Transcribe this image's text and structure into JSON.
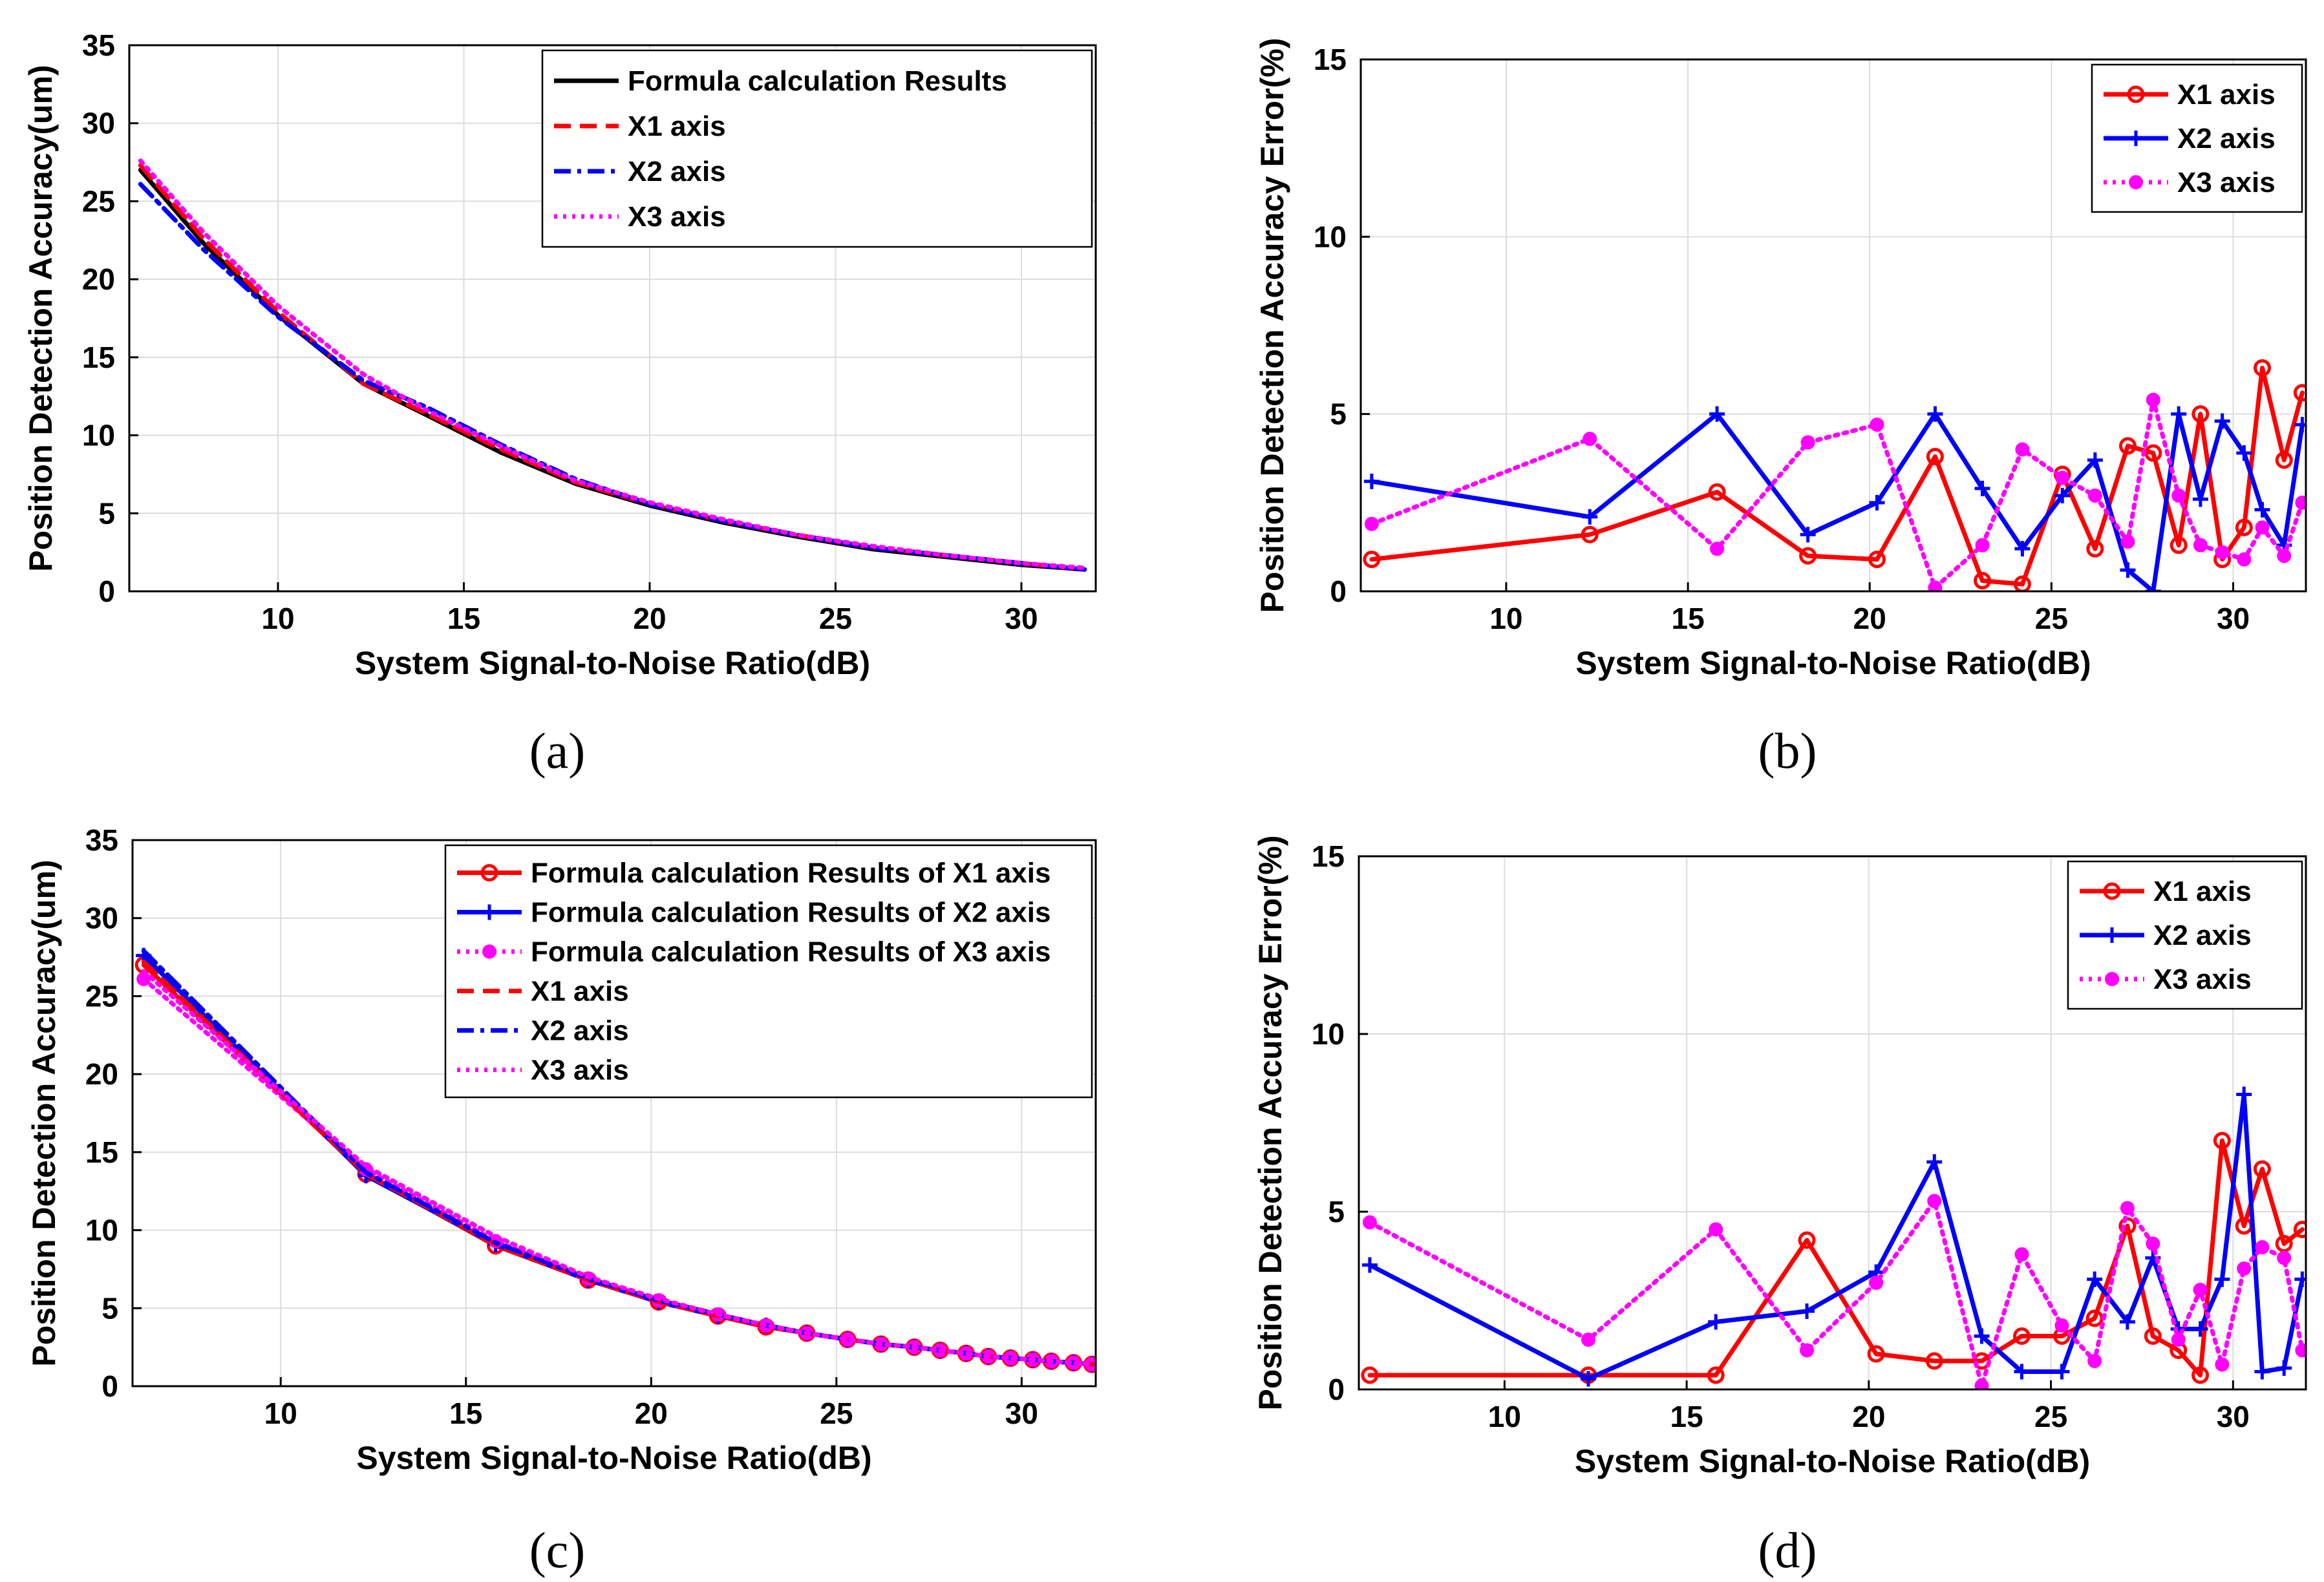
{
  "chart_data": [
    {
      "id": "a",
      "type": "line",
      "panel_label": "(a)",
      "xlabel": "System Signal-to-Noise Ratio(dB)",
      "ylabel": "Position Detection Accuracy(um)",
      "xlim": [
        6,
        32
      ],
      "ylim": [
        0,
        35
      ],
      "xticks": [
        10,
        15,
        20,
        25,
        30
      ],
      "yticks": [
        0,
        5,
        10,
        15,
        20,
        25,
        30,
        35
      ],
      "grid": true,
      "legend_position": "top-right",
      "series": [
        {
          "name": "Formula calculation Results",
          "color": "#000000",
          "dash": "solid",
          "marker": "none",
          "x": [
            6.3,
            8,
            10,
            12.3,
            14,
            16,
            18,
            20,
            22,
            24,
            26,
            28,
            30,
            31.7
          ],
          "y": [
            27,
            22.3,
            17.7,
            13.3,
            11.3,
            8.9,
            6.9,
            5.5,
            4.4,
            3.5,
            2.7,
            2.2,
            1.7,
            1.4
          ]
        },
        {
          "name": "X1 axis",
          "color": "#ff0000",
          "dash": "dashed",
          "marker": "none",
          "x": [
            6.3,
            8,
            10,
            12.3,
            14,
            16,
            18,
            20,
            22,
            24,
            26,
            28,
            30,
            31.7
          ],
          "y": [
            27.3,
            22.6,
            17.9,
            13.3,
            11.4,
            9.1,
            7.0,
            5.6,
            4.5,
            3.6,
            2.8,
            2.3,
            1.8,
            1.4
          ]
        },
        {
          "name": "X2 axis",
          "color": "#0000ff",
          "dash": "dashdot",
          "marker": "none",
          "x": [
            6.3,
            8,
            10,
            12.3,
            14,
            16,
            18,
            20,
            22,
            24,
            26,
            28,
            30,
            31.7
          ],
          "y": [
            26.1,
            21.9,
            17.6,
            13.5,
            11.8,
            9.4,
            7.2,
            5.6,
            4.5,
            3.6,
            2.8,
            2.3,
            1.8,
            1.4
          ]
        },
        {
          "name": "X3 axis",
          "color": "#ff00ff",
          "dash": "dotted",
          "marker": "none",
          "x": [
            6.3,
            8,
            10,
            12.3,
            14,
            16,
            18,
            20,
            22,
            24,
            26,
            28,
            30,
            31.7
          ],
          "y": [
            27.6,
            23,
            18.3,
            13.9,
            11.6,
            9.3,
            7.1,
            5.7,
            4.6,
            3.6,
            2.9,
            2.3,
            1.8,
            1.5
          ]
        }
      ]
    },
    {
      "id": "b",
      "type": "line",
      "panel_label": "(b)",
      "xlabel": "System Signal-to-Noise Ratio(dB)",
      "ylabel": "Position Detection Accuracy Error(%)",
      "xlim": [
        6,
        32
      ],
      "ylim": [
        0,
        15
      ],
      "xticks": [
        10,
        15,
        20,
        25,
        30
      ],
      "yticks": [
        0,
        5,
        10,
        15
      ],
      "grid": true,
      "legend_position": "top-right",
      "series": [
        {
          "name": "X1 axis",
          "color": "#ff0000",
          "dash": "solid",
          "marker": "circle",
          "x": [
            6.3,
            12.3,
            15.8,
            18.3,
            20.2,
            21.8,
            23.1,
            24.2,
            25.3,
            26.2,
            27.1,
            27.8,
            28.5,
            29.1,
            29.7,
            30.3,
            30.8,
            31.4,
            31.9
          ],
          "y": [
            0.9,
            1.6,
            2.8,
            1.0,
            0.9,
            3.8,
            0.3,
            0.2,
            3.3,
            1.2,
            4.1,
            3.9,
            1.3,
            5.0,
            0.9,
            1.8,
            6.3,
            3.7,
            5.6
          ]
        },
        {
          "name": "X2 axis",
          "color": "#0000ff",
          "dash": "solid",
          "marker": "plus",
          "x": [
            6.3,
            12.3,
            15.8,
            18.3,
            20.2,
            21.8,
            23.1,
            24.2,
            25.3,
            26.2,
            27.1,
            27.8,
            28.5,
            29.1,
            29.7,
            30.3,
            30.8,
            31.4,
            31.9
          ],
          "y": [
            3.1,
            2.1,
            5.0,
            1.6,
            2.5,
            5.0,
            2.9,
            1.2,
            2.7,
            3.7,
            0.6,
            0.0,
            5.0,
            2.6,
            4.8,
            3.9,
            2.3,
            1.3,
            4.7
          ]
        },
        {
          "name": "X3 axis",
          "color": "#ff00ff",
          "dash": "dotted",
          "marker": "dot",
          "x": [
            6.3,
            12.3,
            15.8,
            18.3,
            20.2,
            21.8,
            23.1,
            24.2,
            25.3,
            26.2,
            27.1,
            27.8,
            28.5,
            29.1,
            29.7,
            30.3,
            30.8,
            31.4,
            31.9
          ],
          "y": [
            1.9,
            4.3,
            1.2,
            4.2,
            4.7,
            0.1,
            1.3,
            4.0,
            3.2,
            2.7,
            1.4,
            5.4,
            2.7,
            1.3,
            1.1,
            0.9,
            1.8,
            1.0,
            2.5
          ]
        }
      ]
    },
    {
      "id": "c",
      "type": "line",
      "panel_label": "(c)",
      "xlabel": "System Signal-to-Noise Ratio(dB)",
      "ylabel": "Position Detection Accuracy(um)",
      "xlim": [
        6,
        32
      ],
      "ylim": [
        0,
        35
      ],
      "xticks": [
        10,
        15,
        20,
        25,
        30
      ],
      "yticks": [
        0,
        5,
        10,
        15,
        20,
        25,
        30,
        35
      ],
      "grid": true,
      "legend_position": "top-right",
      "series": [
        {
          "name": "Formula calculation Results of X1 axis",
          "color": "#ff0000",
          "dash": "solid",
          "marker": "circle",
          "x": [
            6.3,
            12.3,
            15.8,
            18.3,
            20.2,
            21.8,
            23.1,
            24.2,
            25.3,
            26.2,
            27.1,
            27.8,
            28.5,
            29.1,
            29.7,
            30.3,
            30.8,
            31.4,
            31.9
          ],
          "y": [
            27.0,
            13.6,
            9.0,
            6.8,
            5.4,
            4.5,
            3.8,
            3.4,
            3.0,
            2.7,
            2.5,
            2.3,
            2.1,
            1.9,
            1.8,
            1.7,
            1.6,
            1.5,
            1.4
          ]
        },
        {
          "name": "Formula calculation Results of X2 axis",
          "color": "#0000ff",
          "dash": "solid",
          "marker": "plus",
          "x": [
            6.3,
            12.3,
            15.8,
            18.3,
            20.2,
            21.8,
            23.1,
            24.2,
            25.3,
            26.2,
            27.1,
            27.8,
            28.5,
            29.1,
            29.7,
            30.3,
            30.8,
            31.4,
            31.9
          ],
          "y": [
            27.6,
            13.5,
            9.1,
            6.8,
            5.4,
            4.5,
            3.9,
            3.4,
            3.0,
            2.7,
            2.5,
            2.3,
            2.1,
            1.9,
            1.8,
            1.7,
            1.6,
            1.5,
            1.4
          ]
        },
        {
          "name": "Formula calculation Results of X3 axis",
          "color": "#ff00ff",
          "dash": "dotted",
          "marker": "dot",
          "x": [
            6.3,
            12.3,
            15.8,
            18.3,
            20.2,
            21.8,
            23.1,
            24.2,
            25.3,
            26.2,
            27.1,
            27.8,
            28.5,
            29.1,
            29.7,
            30.3,
            30.8,
            31.4,
            31.9
          ],
          "y": [
            26.1,
            13.9,
            9.3,
            6.9,
            5.5,
            4.6,
            3.9,
            3.4,
            3.0,
            2.7,
            2.5,
            2.3,
            2.1,
            1.9,
            1.8,
            1.7,
            1.6,
            1.5,
            1.4
          ]
        },
        {
          "name": "X1 axis",
          "color": "#ff0000",
          "dash": "dashed",
          "marker": "none",
          "x": [
            6.3,
            12.3,
            15.8,
            18.3,
            20.2,
            21.8,
            23.1,
            24.2,
            25.3,
            26.2,
            27.1,
            27.8,
            28.5,
            29.1,
            29.7,
            30.3,
            30.8,
            31.4,
            31.9
          ],
          "y": [
            27.2,
            13.6,
            9.1,
            6.8,
            5.4,
            4.5,
            3.9,
            3.4,
            3.0,
            2.7,
            2.5,
            2.3,
            2.1,
            1.9,
            1.8,
            1.7,
            1.6,
            1.5,
            1.4
          ]
        },
        {
          "name": "X2 axis",
          "color": "#0000ff",
          "dash": "dashdot",
          "marker": "none",
          "x": [
            6.3,
            12.3,
            15.8,
            18.3,
            20.2,
            21.8,
            23.1,
            24.2,
            25.3,
            26.2,
            27.1,
            27.8,
            28.5,
            29.1,
            29.7,
            30.3,
            30.8,
            31.4,
            31.9
          ],
          "y": [
            27.9,
            13.7,
            9.2,
            6.9,
            5.5,
            4.6,
            3.9,
            3.4,
            3.0,
            2.7,
            2.5,
            2.3,
            2.1,
            1.9,
            1.8,
            1.7,
            1.6,
            1.5,
            1.4
          ]
        },
        {
          "name": "X3 axis",
          "color": "#ff00ff",
          "dash": "dotted",
          "marker": "none",
          "x": [
            6.3,
            12.3,
            15.8,
            18.3,
            20.2,
            21.8,
            23.1,
            24.2,
            25.3,
            26.2,
            27.1,
            27.8,
            28.5,
            29.1,
            29.7,
            30.3,
            30.8,
            31.4,
            31.9
          ],
          "y": [
            26.6,
            14.1,
            9.6,
            7.0,
            5.6,
            4.6,
            3.9,
            3.4,
            3.0,
            2.7,
            2.5,
            2.3,
            2.1,
            1.9,
            1.8,
            1.7,
            1.6,
            1.5,
            1.4
          ]
        }
      ]
    },
    {
      "id": "d",
      "type": "line",
      "panel_label": "(d)",
      "xlabel": "System Signal-to-Noise Ratio(dB)",
      "ylabel": "Position Detection Accuracy Error(%)",
      "xlim": [
        6,
        32
      ],
      "ylim": [
        0,
        15
      ],
      "xticks": [
        10,
        15,
        20,
        25,
        30
      ],
      "yticks": [
        0,
        5,
        10,
        15
      ],
      "grid": true,
      "legend_position": "top-right",
      "series": [
        {
          "name": "X1 axis",
          "color": "#ff0000",
          "dash": "solid",
          "marker": "circle",
          "x": [
            6.3,
            12.3,
            15.8,
            18.3,
            20.2,
            21.8,
            23.1,
            24.2,
            25.3,
            26.2,
            27.1,
            27.8,
            28.5,
            29.1,
            29.7,
            30.3,
            30.8,
            31.4,
            31.9
          ],
          "y": [
            0.4,
            0.4,
            0.4,
            4.2,
            1.0,
            0.8,
            0.8,
            1.5,
            1.5,
            2.0,
            4.6,
            1.5,
            1.1,
            0.4,
            7.0,
            4.6,
            6.2,
            4.1,
            4.5
          ]
        },
        {
          "name": "X2 axis",
          "color": "#0000ff",
          "dash": "solid",
          "marker": "plus",
          "x": [
            6.3,
            12.3,
            15.8,
            18.3,
            20.2,
            21.8,
            23.1,
            24.2,
            25.3,
            26.2,
            27.1,
            27.8,
            28.5,
            29.1,
            29.7,
            30.3,
            30.8,
            31.4,
            31.9
          ],
          "y": [
            3.5,
            0.3,
            1.9,
            2.2,
            3.3,
            6.4,
            1.5,
            0.5,
            0.5,
            3.1,
            1.9,
            3.7,
            1.7,
            1.7,
            3.1,
            8.3,
            0.5,
            0.6,
            3.1
          ]
        },
        {
          "name": "X3 axis",
          "color": "#ff00ff",
          "dash": "dotted",
          "marker": "dot",
          "x": [
            6.3,
            12.3,
            15.8,
            18.3,
            20.2,
            21.8,
            23.1,
            24.2,
            25.3,
            26.2,
            27.1,
            27.8,
            28.5,
            29.1,
            29.7,
            30.3,
            30.8,
            31.4,
            31.9
          ],
          "y": [
            4.7,
            1.4,
            4.5,
            1.1,
            3.0,
            5.3,
            0.1,
            3.8,
            1.8,
            0.8,
            5.1,
            4.1,
            1.4,
            2.8,
            0.7,
            3.4,
            4.0,
            3.7,
            1.1
          ]
        }
      ]
    }
  ]
}
